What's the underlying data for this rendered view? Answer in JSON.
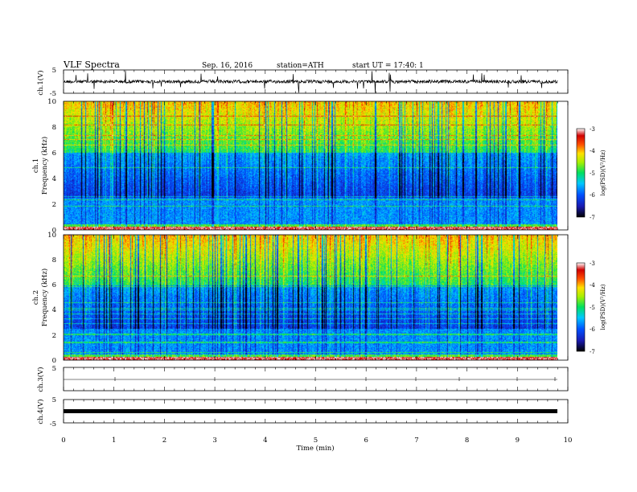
{
  "header": {
    "title": "VLF  Spectra",
    "date": "Sep. 16, 2016",
    "station": "station=ATH",
    "start": "start  UT  =    17:40: 1"
  },
  "chart_data": [
    {
      "type": "line",
      "panel": "ch1-waveform",
      "ylabel": "ch.1(V)",
      "ylim": [
        -5,
        5
      ],
      "yticks": [
        "5",
        "-5"
      ],
      "xlim": [
        0,
        10
      ],
      "baseline": 0,
      "trace_color": "#000000"
    },
    {
      "type": "heatmap",
      "panel": "ch1-spectrogram",
      "ylabel": [
        "ch.1",
        "Frequency  (kHz)"
      ],
      "ylim": [
        0,
        10
      ],
      "yticks": [
        "0",
        "2",
        "4",
        "6",
        "8",
        "10"
      ],
      "xlim": [
        0,
        9.8
      ],
      "colorbar": {
        "label": "log(PSD)(V²/Hz)",
        "range": [
          -7,
          -3
        ],
        "ticks": [
          "-3",
          "-4",
          "-5",
          "-6",
          "-7"
        ]
      }
    },
    {
      "type": "heatmap",
      "panel": "ch2-spectrogram",
      "ylabel": [
        "ch.2",
        "Frequency  (kHz)"
      ],
      "ylim": [
        0,
        10
      ],
      "yticks": [
        "0",
        "2",
        "4",
        "6",
        "8",
        "10"
      ],
      "xlim": [
        0,
        9.8
      ],
      "colorbar": {
        "label": "log(PSD)(V²/Hz)",
        "range": [
          -7,
          -3
        ],
        "ticks": [
          "-3",
          "-4",
          "-5",
          "-6",
          "-7"
        ]
      }
    },
    {
      "type": "line",
      "panel": "ch3-waveform",
      "ylabel": "ch.3(V)",
      "ylim": [
        -5,
        5
      ],
      "yticks": [
        "5"
      ],
      "xlim": [
        0,
        10
      ],
      "baseline": 0
    },
    {
      "type": "line",
      "panel": "ch4-waveform",
      "ylabel": "ch.4(V)",
      "ylim": [
        -5,
        5
      ],
      "yticks": [
        "5",
        "-5"
      ],
      "xlim": [
        0,
        10
      ],
      "baseline": 0
    }
  ],
  "xaxis": {
    "label": "Time  (min)",
    "ticks": [
      "0",
      "1",
      "2",
      "3",
      "4",
      "5",
      "6",
      "7",
      "8",
      "9",
      "10"
    ]
  },
  "colormap": [
    "#000000",
    "#1a1ab0",
    "#0050ff",
    "#00c8ff",
    "#00e060",
    "#a8f000",
    "#ffe000",
    "#ff5000",
    "#d00000",
    "#ffffff"
  ]
}
